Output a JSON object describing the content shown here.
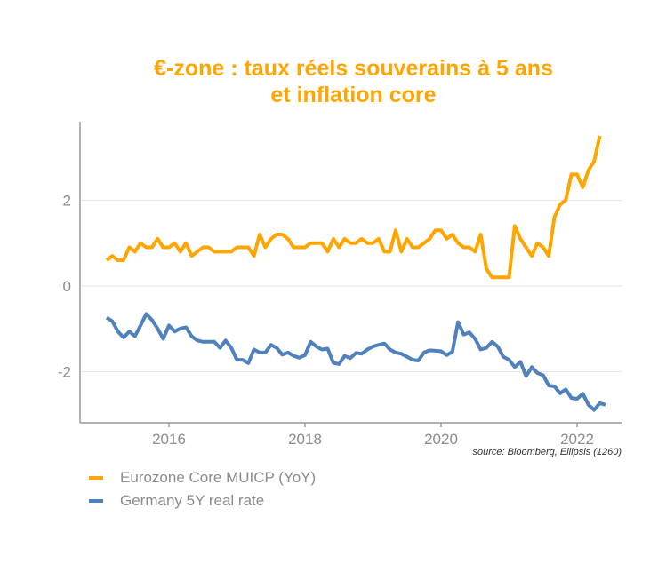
{
  "chart_data": {
    "type": "line",
    "title": "€-zone : taux réels souverains à 5 ans\net inflation core",
    "title_lines": [
      "€-zone : taux réels souverains à 5 ans",
      "et inflation core"
    ],
    "xlabel": "",
    "ylabel": "",
    "x_ticks": [
      "2016",
      "2018",
      "2020",
      "2022"
    ],
    "y_ticks": [
      "2",
      "0",
      "-2"
    ],
    "ylim": [
      -3.2,
      3.8
    ],
    "xlim": [
      "2014-09",
      "2022-08"
    ],
    "grid": "horizontal",
    "legend_position": "bottom-left",
    "source": "source: Bloomberg, Ellipsis (1260)",
    "start_month": "2015-01",
    "frequency": "monthly",
    "series": [
      {
        "name": "Eurozone Core MUICP (YoY)",
        "color": "#FFA500",
        "values": [
          0.6,
          0.7,
          0.6,
          0.6,
          0.9,
          0.8,
          1.0,
          0.9,
          0.9,
          1.1,
          0.9,
          0.9,
          1.0,
          0.8,
          1.0,
          0.7,
          0.8,
          0.9,
          0.9,
          0.8,
          0.8,
          0.8,
          0.8,
          0.9,
          0.9,
          0.9,
          0.7,
          1.2,
          0.9,
          1.1,
          1.2,
          1.2,
          1.1,
          0.9,
          0.9,
          0.9,
          1.0,
          1.0,
          1.0,
          0.8,
          1.1,
          0.9,
          1.1,
          1.0,
          1.0,
          1.1,
          1.0,
          1.0,
          1.1,
          0.8,
          0.8,
          1.3,
          0.8,
          1.1,
          0.9,
          0.9,
          1.0,
          1.1,
          1.3,
          1.3,
          1.1,
          1.2,
          1.0,
          0.9,
          0.9,
          0.8,
          1.2,
          0.4,
          0.2,
          0.2,
          0.2,
          0.2,
          1.4,
          1.1,
          0.9,
          0.7,
          1.0,
          0.9,
          0.7,
          1.6,
          1.9,
          2.0,
          2.6,
          2.6,
          2.3,
          2.7,
          2.9,
          3.5
        ]
      },
      {
        "name": "Germany 5Y real rate",
        "color": "#4F81BD",
        "values": [
          -0.74,
          -0.82,
          -1.06,
          -1.2,
          -1.06,
          -1.17,
          -0.92,
          -0.65,
          -0.79,
          -0.99,
          -1.23,
          -0.92,
          -1.06,
          -0.99,
          -0.96,
          -1.17,
          -1.27,
          -1.3,
          -1.3,
          -1.3,
          -1.44,
          -1.27,
          -1.44,
          -1.72,
          -1.72,
          -1.8,
          -1.48,
          -1.55,
          -1.55,
          -1.37,
          -1.44,
          -1.6,
          -1.55,
          -1.63,
          -1.67,
          -1.61,
          -1.3,
          -1.41,
          -1.48,
          -1.46,
          -1.79,
          -1.82,
          -1.63,
          -1.68,
          -1.56,
          -1.58,
          -1.48,
          -1.41,
          -1.37,
          -1.34,
          -1.48,
          -1.55,
          -1.58,
          -1.65,
          -1.72,
          -1.74,
          -1.55,
          -1.5,
          -1.51,
          -1.52,
          -1.61,
          -1.53,
          -0.84,
          -1.13,
          -1.08,
          -1.23,
          -1.48,
          -1.44,
          -1.3,
          -1.41,
          -1.65,
          -1.72,
          -1.89,
          -1.77,
          -2.1,
          -1.89,
          -2.03,
          -2.08,
          -2.32,
          -2.34,
          -2.5,
          -2.41,
          -2.61,
          -2.63,
          -2.51,
          -2.77,
          -2.89,
          -2.73,
          -2.77
        ]
      }
    ]
  }
}
